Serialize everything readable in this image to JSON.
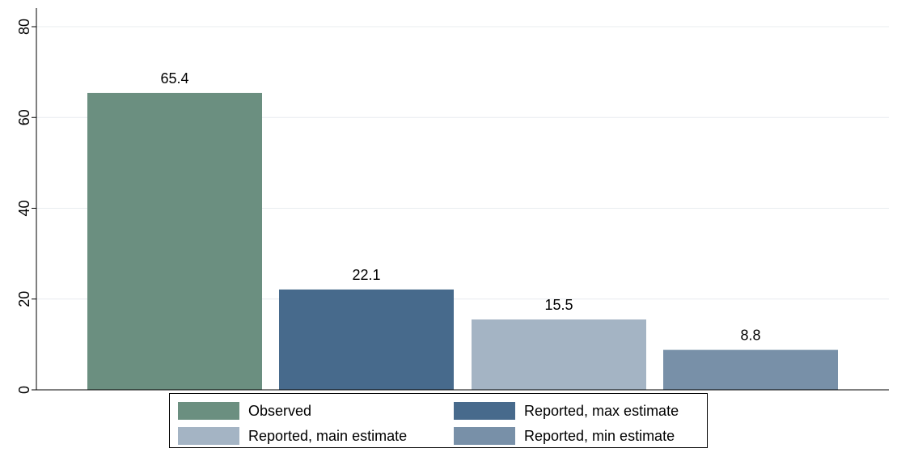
{
  "chart_data": {
    "type": "bar",
    "title": "",
    "xlabel": "",
    "ylabel": "",
    "ylim": [
      0,
      80
    ],
    "yticks": [
      0,
      20,
      40,
      60,
      80
    ],
    "grid": true,
    "legend_position": "bottom",
    "series": [
      {
        "name": "Observed",
        "value": 65.4,
        "label": "65.4",
        "color": "#6b8f80"
      },
      {
        "name": "Reported, max estimate",
        "value": 22.1,
        "label": "22.1",
        "color": "#476a8c"
      },
      {
        "name": "Reported, main estimate",
        "value": 15.5,
        "label": "15.5",
        "color": "#a4b4c4"
      },
      {
        "name": "Reported, min estimate",
        "value": 8.8,
        "label": "8.8",
        "color": "#7890a8"
      }
    ]
  }
}
